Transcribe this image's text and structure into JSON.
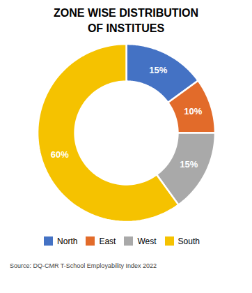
{
  "chart_data": {
    "type": "pie",
    "title": "ZONE WISE DISTRIBUTION\nOF INSTITUES",
    "categories": [
      "North",
      "East",
      "West",
      "South"
    ],
    "values": [
      15,
      10,
      15,
      60
    ],
    "value_labels": [
      "15%",
      "10%",
      "15%",
      "60%"
    ],
    "colors": [
      "#4472C4",
      "#E26B2A",
      "#A9A9A9",
      "#F5C200"
    ],
    "data_labels": true,
    "legend": "bottom",
    "caption": "Source: DQ-CMR T-School Employability Index 2022"
  }
}
